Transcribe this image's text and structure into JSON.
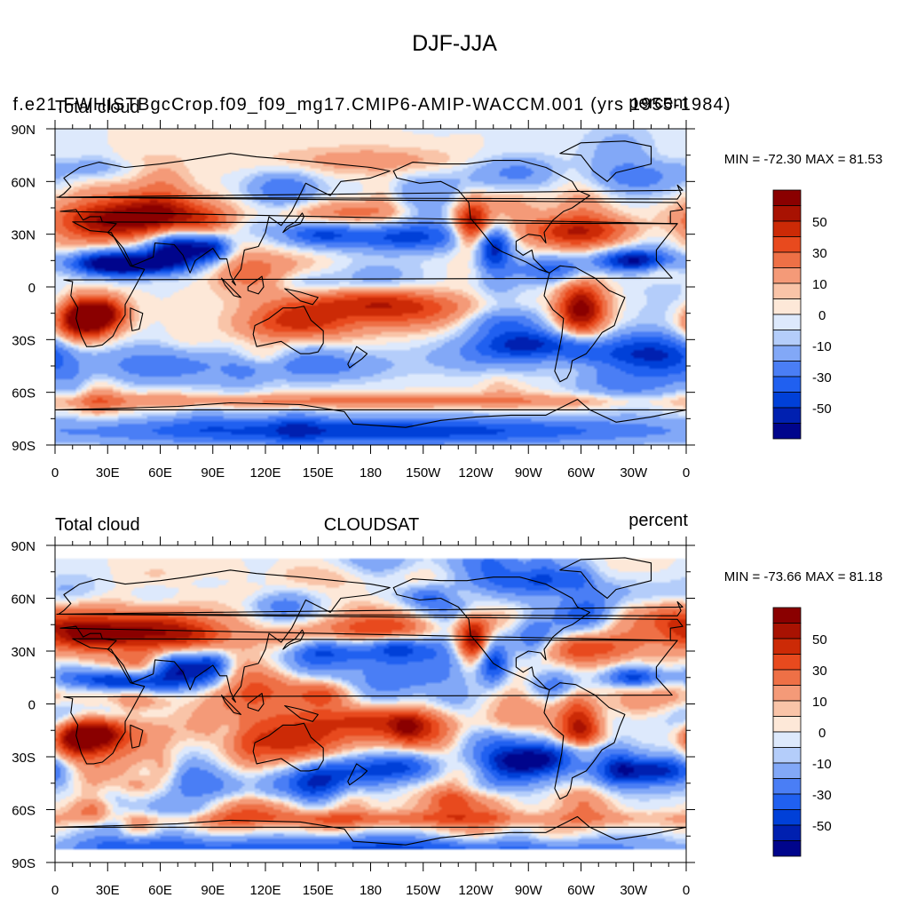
{
  "figure": {
    "title": "DJF-JJA"
  },
  "panels": [
    {
      "id": "model",
      "left_label": "Total cloud",
      "center_label": "f.e21.FWHISTBgcCrop.f09_f09_mg17.CMIP6-AMIP-WACCM.001 (yrs 1955-1984)",
      "right_label": "percent",
      "min_max": "MIN = -72.30 MAX =  81.53",
      "data_coverage": {
        "lat_min": -90,
        "lat_max": 90
      }
    },
    {
      "id": "obs",
      "left_label": "Total cloud",
      "center_label": "CLOUDSAT",
      "right_label": "percent",
      "min_max": "MIN = -73.66 MAX =  81.18",
      "data_coverage": {
        "lat_min": -82,
        "lat_max": 82
      }
    }
  ],
  "axes": {
    "y_ticks": [
      "90N",
      "60N",
      "30N",
      "0",
      "30S",
      "60S",
      "90S"
    ],
    "x_ticks": [
      "0",
      "30E",
      "60E",
      "90E",
      "120E",
      "150E",
      "180",
      "150W",
      "120W",
      "90W",
      "60W",
      "30W",
      "0"
    ],
    "lon_range": [
      0,
      360
    ],
    "lat_range": [
      -90,
      90
    ]
  },
  "colorbar": {
    "levels": [
      -60,
      -50,
      -40,
      -30,
      -20,
      -10,
      -5,
      0,
      5,
      10,
      20,
      30,
      40,
      50,
      60
    ],
    "colors": [
      "#00058c",
      "#0020b0",
      "#0040d8",
      "#2060f0",
      "#4a7ef5",
      "#82a8f7",
      "#b4cdfa",
      "#dde9fc",
      "#fde8d8",
      "#f9c4a8",
      "#f49a78",
      "#ee7046",
      "#e84a1e",
      "#cc2a06",
      "#a81202",
      "#8a0000"
    ],
    "labels": [
      "50",
      "30",
      "10",
      "0",
      "-10",
      "-30",
      "-50"
    ]
  }
}
